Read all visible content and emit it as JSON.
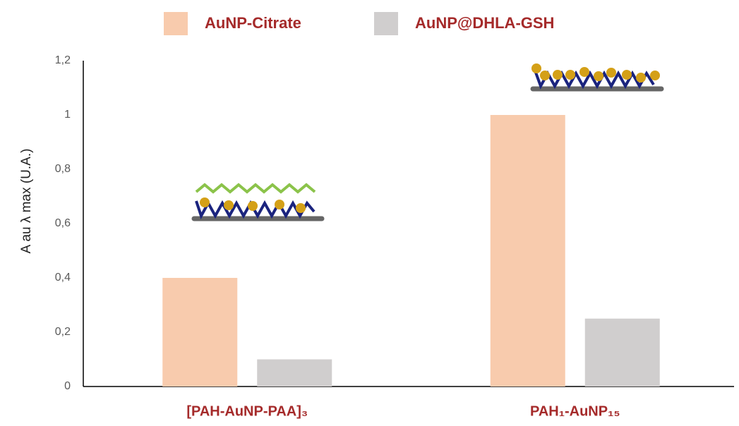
{
  "chart_data": {
    "type": "bar",
    "categories": [
      "[PAH-AuNP-PAA]₃",
      "PAH₁-AuNP₁₅"
    ],
    "series": [
      {
        "name": "AuNP-Citrate",
        "color": "#f8cbad",
        "values": [
          0.4,
          1
        ]
      },
      {
        "name": "AuNP@DHLA-GSH",
        "color": "#d0cece",
        "values": [
          0.1,
          0.25
        ]
      }
    ],
    "y_label": "A au λ max (U.A.)",
    "ylim": [
      0,
      1.2
    ],
    "yticks": [
      0,
      {
        "value": 0.2,
        "label": "0,2"
      },
      {
        "value": 0.4,
        "label": "0,4"
      },
      {
        "value": 0.6,
        "label": "0,6"
      },
      {
        "value": 0.8,
        "label": "0,8"
      },
      1,
      {
        "value": 1.2,
        "label": "1,2"
      }
    ],
    "grid": false,
    "legend": "top"
  }
}
